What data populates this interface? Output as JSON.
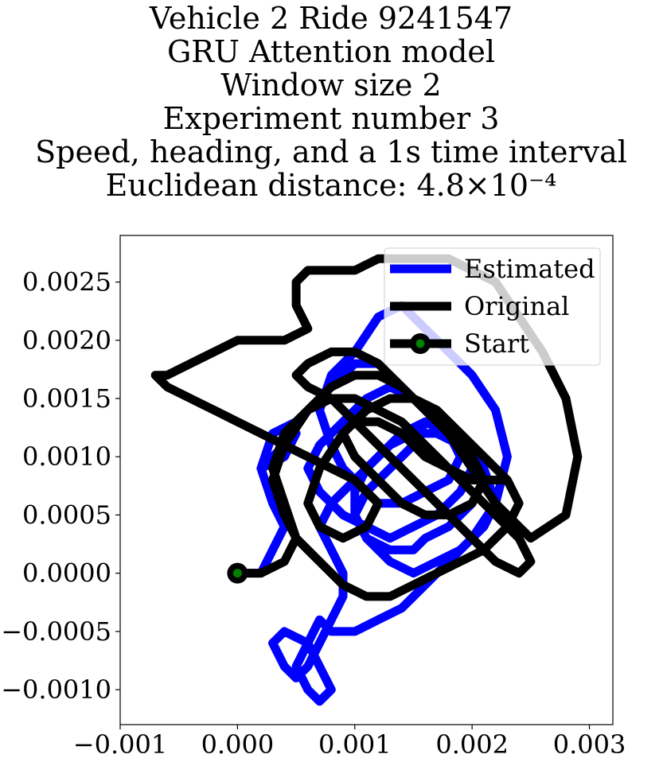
{
  "chart_data": {
    "type": "line",
    "title_lines": [
      "Vehicle 2 Ride 9241547",
      "GRU Attention model",
      "Window size 2",
      "Experiment number 3",
      "Speed, heading, and a 1s time interval",
      "Euclidean distance: 4.8×10⁻⁴"
    ],
    "xlabel": "",
    "ylabel": "",
    "xlim": [
      -0.001,
      0.0032
    ],
    "ylim": [
      -0.0013,
      0.0029
    ],
    "x_ticks": [
      -0.001,
      0.0,
      0.001,
      0.002,
      0.003
    ],
    "x_tick_labels": [
      "−0.001",
      "0.000",
      "0.001",
      "0.002",
      "0.003"
    ],
    "y_ticks": [
      -0.001,
      -0.0005,
      0.0,
      0.0005,
      0.001,
      0.0015,
      0.002,
      0.0025
    ],
    "y_tick_labels": [
      "−0.0010",
      "−0.0005",
      "0.0000",
      "0.0005",
      "0.0010",
      "0.0015",
      "0.0020",
      "0.0025"
    ],
    "grid": false,
    "legend_position": "upper-right",
    "series": [
      {
        "name": "Estimated",
        "color": "#0000ff",
        "x": [
          0.0,
          0.0002,
          0.0003,
          0.0004,
          0.0003,
          0.0002,
          0.0004,
          0.0005,
          0.0004,
          0.0002,
          0.0003,
          0.0005,
          0.0007,
          0.0009,
          0.001,
          0.0012,
          0.0014,
          0.0016,
          0.0018,
          0.0019,
          0.0018,
          0.0016,
          0.0014,
          0.0012,
          0.0011,
          0.0009,
          0.0008,
          0.0007,
          0.0008,
          0.001,
          0.0012,
          0.0014,
          0.0016,
          0.0018,
          0.002,
          0.0022,
          0.0023,
          0.0022,
          0.002,
          0.0018,
          0.0016,
          0.0014,
          0.0012,
          0.001,
          0.0008,
          0.0007,
          0.0006,
          0.0005,
          0.0006,
          0.0007,
          0.0008,
          0.0007,
          0.0006,
          0.0004,
          0.0003,
          0.0004,
          0.0005,
          0.0006,
          0.0007,
          0.0008,
          0.0009,
          0.0009,
          0.0008,
          0.0007,
          0.0008,
          0.001,
          0.0012,
          0.0014,
          0.0016,
          0.0018,
          0.002,
          0.0021,
          0.002,
          0.0018,
          0.0016,
          0.0015,
          0.0013,
          0.0011,
          0.001,
          0.001,
          0.0011,
          0.0013,
          0.0015,
          0.0017,
          0.0019,
          0.002,
          0.0019,
          0.0017,
          0.0015,
          0.0013,
          0.0011,
          0.0009,
          0.0007,
          0.0006,
          0.0007,
          0.0009,
          0.0011,
          0.0013,
          0.0015,
          0.0017,
          0.0019,
          0.0021,
          0.0022,
          0.0021,
          0.0019,
          0.0017,
          0.0015,
          0.0013,
          0.0011,
          0.001,
          0.0011,
          0.0013,
          0.0015,
          0.0016
        ],
        "y": [
          0.0,
          0.0,
          0.0002,
          0.0004,
          0.0006,
          0.0009,
          0.0011,
          0.0012,
          0.001,
          0.0009,
          0.0012,
          0.0013,
          0.0015,
          0.0017,
          0.0018,
          0.0018,
          0.0016,
          0.0014,
          0.0012,
          0.001,
          0.0008,
          0.0007,
          0.0006,
          0.0006,
          0.0007,
          0.0009,
          0.0011,
          0.0014,
          0.0017,
          0.0019,
          0.0022,
          0.0023,
          0.0021,
          0.0019,
          0.0017,
          0.0014,
          0.001,
          0.0006,
          0.0003,
          0.0001,
          -0.0001,
          -0.0003,
          -0.0004,
          -0.0005,
          -0.0005,
          -0.0004,
          -0.0006,
          -0.0008,
          -0.001,
          -0.0011,
          -0.001,
          -0.0008,
          -0.0006,
          -0.0005,
          -0.0006,
          -0.0008,
          -0.0009,
          -0.0008,
          -0.0006,
          -0.0004,
          -0.0002,
          0.0,
          0.0002,
          0.0004,
          0.0006,
          0.0008,
          0.001,
          0.0012,
          0.0013,
          0.0012,
          0.001,
          0.0008,
          0.0006,
          0.0004,
          0.0003,
          0.0002,
          0.0002,
          0.0003,
          0.0005,
          0.0007,
          0.0009,
          0.0011,
          0.0012,
          0.0012,
          0.0011,
          0.0009,
          0.0007,
          0.0005,
          0.0004,
          0.0003,
          0.0004,
          0.0005,
          0.0007,
          0.0009,
          0.0011,
          0.0013,
          0.0015,
          0.0016,
          0.0015,
          0.0013,
          0.0011,
          0.0009,
          0.0006,
          0.0004,
          0.0002,
          0.0001,
          0.0,
          0.0001,
          0.0003,
          0.0005,
          0.0007,
          0.0009,
          0.0011,
          0.0013
        ]
      },
      {
        "name": "Original",
        "color": "#000000",
        "x": [
          0.0,
          0.0002,
          0.0004,
          0.0005,
          0.0004,
          0.0003,
          0.0004,
          0.0006,
          0.0008,
          0.001,
          0.0012,
          0.0014,
          0.0016,
          0.0018,
          0.002,
          0.0022,
          0.0025,
          0.0028,
          0.0029,
          0.0028,
          0.0026,
          0.0024,
          0.0022,
          0.002,
          0.0018,
          0.0016,
          0.0014,
          0.0012,
          0.001,
          0.0008,
          0.0007,
          0.0006,
          0.0005,
          0.0005,
          0.0006,
          0.0004,
          0.0002,
          0.0,
          -0.0002,
          -0.0004,
          -0.0006,
          -0.0007,
          -0.0006,
          -0.0004,
          -0.0002,
          0.0,
          0.0002,
          0.0004,
          0.0006,
          0.0008,
          0.001,
          0.0012,
          0.0011,
          0.0009,
          0.0007,
          0.0006,
          0.0007,
          0.0009,
          0.0011,
          0.0013,
          0.0015,
          0.0017,
          0.0019,
          0.0021,
          0.0023,
          0.0024,
          0.0023,
          0.0021,
          0.0019,
          0.0017,
          0.0015,
          0.0013,
          0.0011,
          0.0009,
          0.0007,
          0.0005,
          0.0004,
          0.0003,
          0.0004,
          0.0006,
          0.0008,
          0.001,
          0.0012,
          0.0014,
          0.0016,
          0.0018,
          0.002,
          0.0022,
          0.0024,
          0.0025,
          0.0024,
          0.0022,
          0.002,
          0.0018,
          0.0016,
          0.0014,
          0.0012,
          0.001,
          0.0008,
          0.0006,
          0.0005,
          0.0006,
          0.0008,
          0.001,
          0.0012,
          0.0014,
          0.0016,
          0.0018,
          0.002,
          0.0021,
          0.002,
          0.0018,
          0.0016,
          0.0014,
          0.0012,
          0.001,
          0.0009,
          0.001,
          0.0012,
          0.0014,
          0.0016,
          0.0018,
          0.002,
          0.0022,
          0.0023,
          0.0022
        ],
        "y": [
          0.0,
          0.0,
          0.0001,
          0.0003,
          0.0005,
          0.0008,
          0.0011,
          0.0014,
          0.0016,
          0.0017,
          0.0017,
          0.0016,
          0.0014,
          0.0012,
          0.0009,
          0.0006,
          0.0003,
          0.0005,
          0.001,
          0.0015,
          0.0019,
          0.0022,
          0.0025,
          0.0026,
          0.0027,
          0.0027,
          0.0027,
          0.0027,
          0.0026,
          0.0026,
          0.0026,
          0.0026,
          0.0025,
          0.0023,
          0.0021,
          0.002,
          0.002,
          0.002,
          0.0019,
          0.0018,
          0.0017,
          0.0017,
          0.0016,
          0.0015,
          0.0014,
          0.0013,
          0.0012,
          0.0011,
          0.001,
          0.0009,
          0.0008,
          0.0006,
          0.0004,
          0.0003,
          0.0004,
          0.0006,
          0.0009,
          0.0012,
          0.0014,
          0.0015,
          0.0015,
          0.0014,
          0.0012,
          0.001,
          0.0008,
          0.0006,
          0.0004,
          0.0002,
          0.0001,
          0.0,
          -0.0001,
          -0.0002,
          -0.0002,
          -0.0001,
          0.0001,
          0.0003,
          0.0006,
          0.0009,
          0.0012,
          0.0014,
          0.0015,
          0.0015,
          0.0014,
          0.0013,
          0.0011,
          0.0009,
          0.0007,
          0.0005,
          0.0003,
          0.0001,
          0.0,
          0.0001,
          0.0003,
          0.0005,
          0.0007,
          0.0009,
          0.0011,
          0.0013,
          0.0015,
          0.0016,
          0.0017,
          0.0018,
          0.0019,
          0.0019,
          0.0018,
          0.0016,
          0.0014,
          0.0012,
          0.001,
          0.0008,
          0.0006,
          0.0005,
          0.0005,
          0.0006,
          0.0008,
          0.001,
          0.0012,
          0.0013,
          0.0013,
          0.0012,
          0.001,
          0.0009,
          0.0008,
          0.0008,
          0.0008,
          0.0008
        ]
      }
    ],
    "start_point": {
      "name": "Start",
      "x": 0.0,
      "y": 0.0,
      "outer_color": "#000000",
      "inner_color": "#008000"
    }
  }
}
